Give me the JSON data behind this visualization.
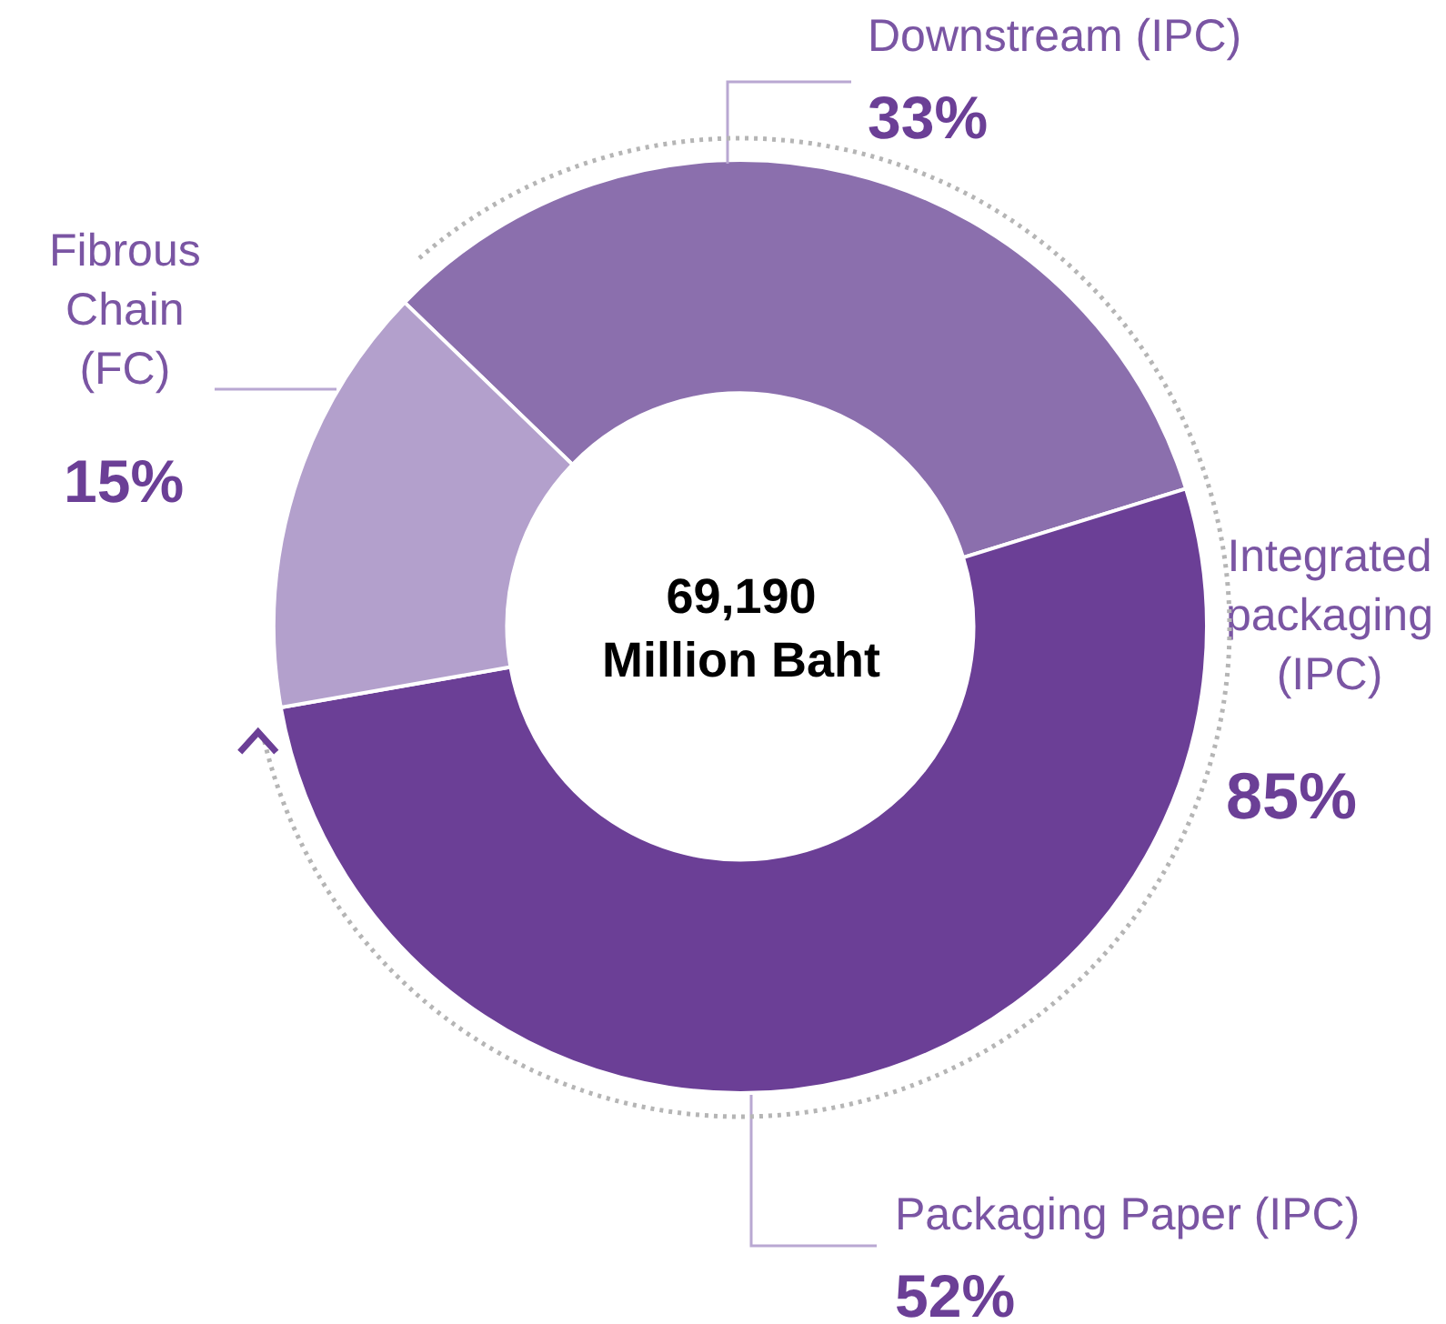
{
  "chart_data": {
    "type": "donut",
    "categories": [
      "Downstream (IPC)",
      "Packaging Paper (IPC)",
      "Fibrous Chain (FC)"
    ],
    "values": [
      33,
      52,
      15
    ],
    "colors": [
      "#8b6fad",
      "#6b3f96",
      "#b3a0cc"
    ],
    "value_labels": [
      "33%",
      "52%",
      "15%"
    ],
    "annotations": [
      "69,190 Million Baht",
      "Integrated packaging (IPC)",
      "85%"
    ],
    "legend": false
  }
}
